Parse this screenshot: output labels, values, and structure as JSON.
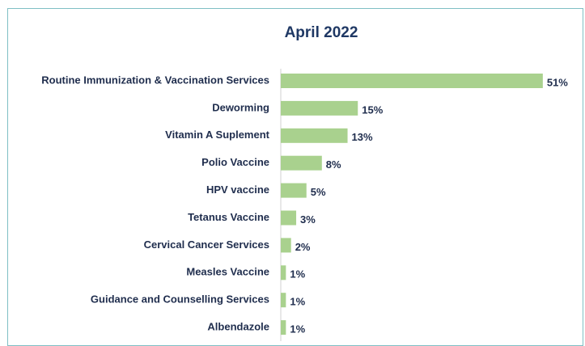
{
  "chart_data": {
    "type": "bar",
    "orientation": "horizontal",
    "title": "April 2022",
    "categories": [
      "Routine Immunization & Vaccination Services",
      "Deworming",
      "Vitamin A Suplement",
      "Polio Vaccine",
      "HPV vaccine",
      "Tetanus Vaccine",
      "Cervical Cancer Services",
      "Measles Vaccine",
      "Guidance and Counselling Services",
      "Albendazole"
    ],
    "values": [
      51,
      15,
      13,
      8,
      5,
      3,
      2,
      1,
      1,
      1
    ],
    "value_labels": [
      "51%",
      "15%",
      "13%",
      "8%",
      "5%",
      "3%",
      "2%",
      "1%",
      "1%",
      "1%"
    ],
    "color": "#a9d18e"
  }
}
